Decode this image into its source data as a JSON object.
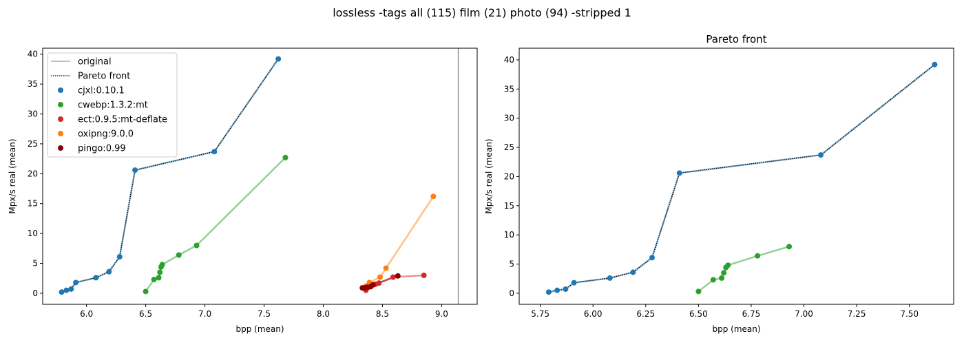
{
  "suptitle": "lossless -tags all (115) film (21) photo (94) -stripped 1",
  "colors": {
    "cjxl:0.10.1": "#1f77b4",
    "cwebp:1.3.2:mt": "#2ca02c",
    "ect:0.9.5:mt-deflate": "#d62728",
    "oxipng:9.0.0": "#ff7f0e",
    "pingo:0.99": "#8b0000",
    "original": "#808080"
  },
  "chart_data": [
    {
      "type": "line",
      "title": "",
      "xlabel": "bpp (mean)",
      "ylabel": "Mpx/s real (mean)",
      "xlim": [
        5.63,
        9.3
      ],
      "ylim": [
        -1.85,
        41
      ],
      "xticks": [
        6.0,
        6.5,
        7.0,
        7.5,
        8.0,
        8.5,
        9.0
      ],
      "xtick_labels": [
        "6.0",
        "6.5",
        "7.0",
        "7.5",
        "8.0",
        "8.5",
        "9.0"
      ],
      "yticks": [
        0,
        5,
        10,
        15,
        20,
        25,
        30,
        35,
        40
      ],
      "ytick_labels": [
        "0",
        "5",
        "10",
        "15",
        "20",
        "25",
        "30",
        "35",
        "40"
      ],
      "original_x": 9.14,
      "legend": [
        "original",
        "Pareto front",
        "cjxl:0.10.1",
        "cwebp:1.3.2:mt",
        "ect:0.9.5:mt-deflate",
        "oxipng:9.0.0",
        "pingo:0.99"
      ],
      "legend_position": "upper-left",
      "series": [
        {
          "name": "cjxl:0.10.1",
          "x": [
            5.79,
            5.83,
            5.87,
            5.91,
            6.08,
            6.19,
            6.28,
            6.41,
            7.08,
            7.62
          ],
          "y": [
            0.2,
            0.5,
            0.7,
            1.8,
            2.6,
            3.6,
            6.1,
            20.6,
            23.7,
            39.2
          ]
        },
        {
          "name": "cwebp:1.3.2:mt",
          "x": [
            6.5,
            6.57,
            6.61,
            6.62,
            6.63,
            6.64,
            6.78,
            6.93,
            7.68
          ],
          "y": [
            0.3,
            2.3,
            2.6,
            3.5,
            4.4,
            4.8,
            6.4,
            8.0,
            22.7
          ]
        },
        {
          "name": "ect:0.9.5:mt-deflate",
          "x": [
            8.36,
            8.38,
            8.4,
            8.44,
            8.47,
            8.59,
            8.85
          ],
          "y": [
            0.5,
            1.0,
            1.3,
            1.5,
            1.7,
            2.7,
            3.0
          ]
        },
        {
          "name": "oxipng:9.0.0",
          "x": [
            8.36,
            8.39,
            8.48,
            8.53,
            8.93
          ],
          "y": [
            1.2,
            1.8,
            2.7,
            4.2,
            16.2
          ]
        },
        {
          "name": "pingo:0.99",
          "x": [
            8.33,
            8.35,
            8.37,
            8.4,
            8.42,
            8.63
          ],
          "y": [
            0.9,
            0.9,
            1.0,
            1.1,
            1.4,
            2.9
          ]
        }
      ],
      "pareto": {
        "x": [
          5.79,
          5.83,
          5.87,
          5.91,
          6.08,
          6.19,
          6.28,
          6.41,
          7.08,
          7.62
        ],
        "y": [
          0.2,
          0.5,
          0.7,
          1.8,
          2.6,
          3.6,
          6.1,
          20.6,
          23.7,
          39.2
        ]
      }
    },
    {
      "type": "line",
      "title": "Pareto front",
      "xlabel": "bpp (mean)",
      "ylabel": "Mpx/s real (mean)",
      "xlim": [
        5.65,
        7.71
      ],
      "ylim": [
        -1.9,
        42
      ],
      "xticks": [
        5.75,
        6.0,
        6.25,
        6.5,
        6.75,
        7.0,
        7.25,
        7.5
      ],
      "xtick_labels": [
        "5.75",
        "6.00",
        "6.25",
        "6.50",
        "6.75",
        "7.00",
        "7.25",
        "7.50"
      ],
      "yticks": [
        0,
        5,
        10,
        15,
        20,
        25,
        30,
        35,
        40
      ],
      "ytick_labels": [
        "0",
        "5",
        "10",
        "15",
        "20",
        "25",
        "30",
        "35",
        "40"
      ],
      "series": [
        {
          "name": "cjxl:0.10.1",
          "x": [
            5.79,
            5.83,
            5.87,
            5.91,
            6.08,
            6.19,
            6.28,
            6.41,
            7.08,
            7.62
          ],
          "y": [
            0.2,
            0.5,
            0.7,
            1.8,
            2.6,
            3.6,
            6.1,
            20.6,
            23.7,
            39.2
          ]
        },
        {
          "name": "cwebp:1.3.2:mt",
          "x": [
            6.5,
            6.57,
            6.61,
            6.62,
            6.63,
            6.64,
            6.78,
            6.93
          ],
          "y": [
            0.3,
            2.3,
            2.6,
            3.5,
            4.4,
            4.8,
            6.4,
            8.0
          ]
        }
      ],
      "pareto": {
        "x": [
          5.79,
          5.83,
          5.87,
          5.91,
          6.08,
          6.19,
          6.28,
          6.41,
          7.08,
          7.62
        ],
        "y": [
          0.2,
          0.5,
          0.7,
          1.8,
          2.6,
          3.6,
          6.1,
          20.6,
          23.7,
          39.2
        ]
      }
    }
  ]
}
